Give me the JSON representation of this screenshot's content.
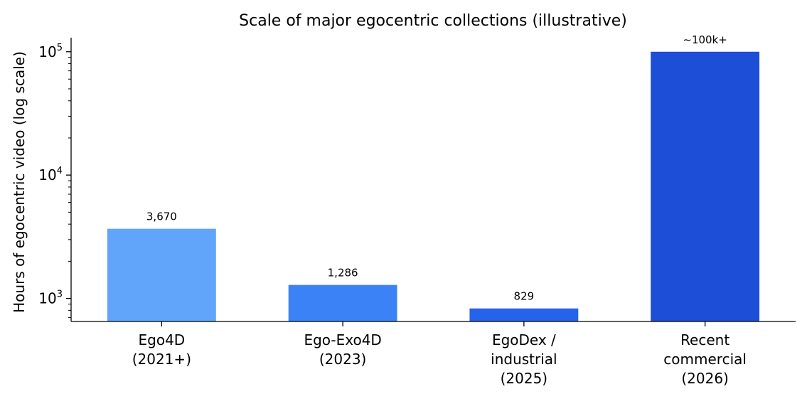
{
  "chart_data": {
    "type": "bar",
    "title": "Scale of major egocentric collections (illustrative)",
    "ylabel": "Hours of egocentric video (log scale)",
    "xlabel": "",
    "yscale": "log",
    "ylim": [
      650,
      130000
    ],
    "yticks": [
      {
        "value": 1000,
        "base": "10",
        "exp": "3"
      },
      {
        "value": 10000,
        "base": "10",
        "exp": "4"
      },
      {
        "value": 100000,
        "base": "10",
        "exp": "5"
      }
    ],
    "categories": [
      [
        "Ego4D",
        "(2021+)"
      ],
      [
        "Ego-Exo4D",
        "(2023)"
      ],
      [
        "EgoDex /",
        "industrial",
        "(2025)"
      ],
      [
        "Recent",
        "commercial",
        "(2026)"
      ]
    ],
    "values": [
      3670,
      1286,
      829,
      100000
    ],
    "data_labels": [
      "3,670",
      "1,286",
      "829",
      "~100k+"
    ],
    "colors": [
      "#60a5fa",
      "#3b82f6",
      "#2563eb",
      "#1d4ed8"
    ],
    "grid": false,
    "legend": "none"
  }
}
